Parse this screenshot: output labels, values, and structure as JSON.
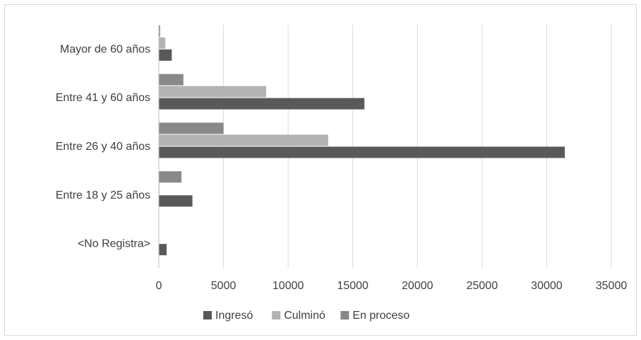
{
  "chart_data": {
    "type": "bar",
    "orientation": "horizontal",
    "title": "",
    "xlabel": "",
    "ylabel": "",
    "categories": [
      "<No Registra>",
      "Entre 18 y 25 años",
      "Entre 26 y 40 años",
      "Entre 41 y 60 años",
      "Mayor de 60 años"
    ],
    "series": [
      {
        "name": "Ingresó",
        "color": "#595959",
        "values": [
          600,
          2600,
          31400,
          15900,
          1000
        ]
      },
      {
        "name": "Culminó",
        "color": "#b3b3b3",
        "values": [
          0,
          50,
          13100,
          8300,
          500
        ]
      },
      {
        "name": "En proceso",
        "color": "#898989",
        "values": [
          0,
          1750,
          5000,
          1900,
          100
        ]
      }
    ],
    "xlim": [
      0,
      35000
    ],
    "xticks": [
      "0",
      "5000",
      "10000",
      "15000",
      "20000",
      "25000",
      "30000",
      "35000"
    ],
    "grid": "vertical",
    "legend_position": "bottom"
  }
}
